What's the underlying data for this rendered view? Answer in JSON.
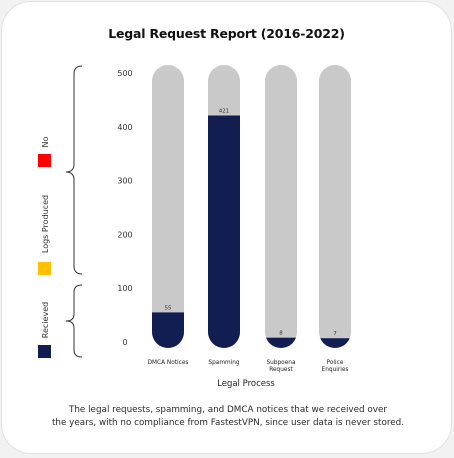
{
  "chart_data": {
    "type": "bar",
    "title": "Legal Request Report (2016-2022)",
    "xlabel": "Legal Process",
    "ylabel": "",
    "ylim": [
      0,
      500
    ],
    "yticks": [
      0,
      100,
      200,
      300,
      400,
      500
    ],
    "categories": [
      "DMCA Notices",
      "Spamming",
      "Subpoena Request",
      "Police Enquiries"
    ],
    "category_lines": [
      [
        "DMCA Notices"
      ],
      [
        "Spamming"
      ],
      [
        "Subpoena",
        "Request"
      ],
      [
        "Police",
        "Enquiries"
      ]
    ],
    "values": [
      55,
      421,
      8,
      7
    ],
    "value_labels": [
      "55",
      "421",
      "8",
      "7"
    ],
    "legend": [
      {
        "label": "No",
        "color": "#ff0000"
      },
      {
        "label": "Logs Produced",
        "color": "#ffc000"
      },
      {
        "label": "Recieved",
        "color": "#121d52"
      }
    ],
    "colors": {
      "bar_fill": "#121d52",
      "bar_track": "#c9c9c9"
    }
  },
  "caption": {
    "line1": "The legal requests, spamming, and DMCA notices that we received over",
    "line2": "the years, with no compliance from FastestVPN, since user data is never stored."
  }
}
